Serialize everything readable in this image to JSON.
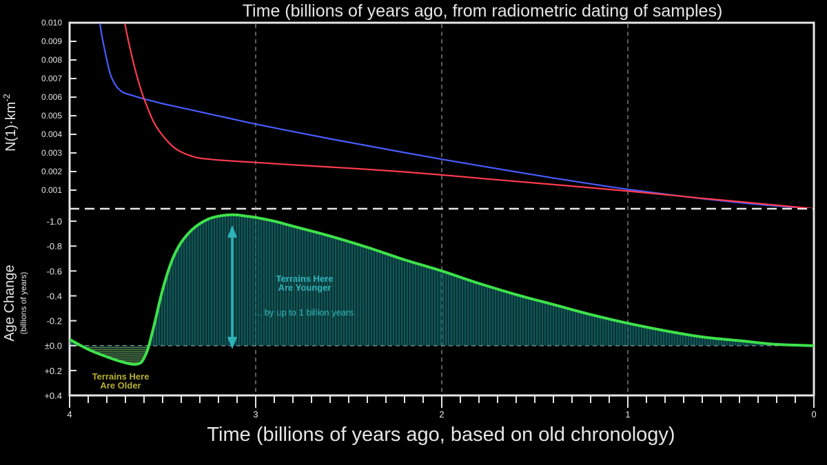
{
  "top_title": "Time (billions of years ago, from radiometric dating of samples)",
  "bottom_title": "Time (billions of years ago, based on old chronology)",
  "top_ylabel_main": "N(1)·km",
  "top_ylabel_sup": "-2",
  "bottom_ylabel_main": "Age Change",
  "bottom_ylabel_sub": "(billions of years)",
  "annotation_younger_1": "Terrains Here",
  "annotation_younger_2": "Are Younger",
  "annotation_note": "... by up to 1 billion years.",
  "annotation_older_1": "Terrains Here",
  "annotation_older_2": "Are Older",
  "colors": {
    "background": "#000000",
    "frame": "#e6e6e6",
    "blue": "#4a5cff",
    "red": "#ff3b4e",
    "green": "#3ee24a",
    "teal": "#2fb3b8",
    "olive": "#b7b12f",
    "fill_teal": "#0e5c5c",
    "fill_olive": "#5a5a10"
  },
  "chart_data": [
    {
      "type": "line",
      "title": "Time (billions of years ago, from radiometric dating of samples)",
      "ylabel": "N(1)·km-2",
      "xlim": [
        4,
        0
      ],
      "ylim": [
        0,
        0.01
      ],
      "yticks": [
        "0.010",
        "0.009",
        "0.008",
        "0.007",
        "0.006",
        "0.005",
        "0.004",
        "0.003",
        "0.002",
        "0.001"
      ],
      "ytick_values": [
        0.01,
        0.009,
        0.008,
        0.007,
        0.006,
        0.005,
        0.004,
        0.003,
        0.002,
        0.001
      ],
      "series": [
        {
          "color": "#4a5cff",
          "x": [
            3.85,
            3.83,
            3.8,
            3.78,
            3.75,
            3.72,
            3.7,
            3.65,
            3.6,
            3.55,
            3.5,
            3.4,
            3.3,
            3.2,
            3.1,
            3.0,
            2.8,
            2.6,
            2.4,
            2.2,
            2.0,
            1.8,
            1.6,
            1.4,
            1.2,
            1.0,
            0.8,
            0.6,
            0.4,
            0.2,
            0.0
          ],
          "y": [
            0.011,
            0.0095,
            0.008,
            0.0072,
            0.0066,
            0.0063,
            0.0062,
            0.00605,
            0.0059,
            0.00578,
            0.00565,
            0.00543,
            0.00521,
            0.00499,
            0.00477,
            0.00455,
            0.00415,
            0.00376,
            0.00339,
            0.00302,
            0.00266,
            0.00232,
            0.00198,
            0.00165,
            0.00134,
            0.00104,
            0.00078,
            0.00054,
            0.00033,
            0.00015,
            0.0
          ]
        },
        {
          "color": "#ff3b4e",
          "x": [
            3.72,
            3.7,
            3.67,
            3.64,
            3.61,
            3.58,
            3.55,
            3.52,
            3.48,
            3.44,
            3.4,
            3.35,
            3.3,
            3.2,
            3.1,
            3.0,
            2.8,
            2.6,
            2.4,
            2.2,
            2.0,
            1.8,
            1.6,
            1.4,
            1.2,
            1.0,
            0.8,
            0.6,
            0.4,
            0.2,
            0.0
          ],
          "y": [
            0.011,
            0.0098,
            0.0084,
            0.0072,
            0.0062,
            0.0054,
            0.0047,
            0.0042,
            0.0037,
            0.0033,
            0.00305,
            0.00285,
            0.00272,
            0.00262,
            0.00255,
            0.00249,
            0.00236,
            0.00224,
            0.00212,
            0.00198,
            0.00182,
            0.00164,
            0.00147,
            0.0013,
            0.00113,
            0.00095,
            0.00076,
            0.00056,
            0.00038,
            0.00019,
            0.0
          ]
        }
      ],
      "grid": "vertical dashed at x = 3, 2, 1"
    },
    {
      "type": "area",
      "ylabel": "Age Change (billions of years)",
      "xlabel": "Time (billions of years ago, based on old chronology)",
      "xlim": [
        4,
        0
      ],
      "ylim": [
        0.4,
        -1.1
      ],
      "yticks": [
        "-1.0",
        "-0.8",
        "-0.6",
        "-0.4",
        "-0.2",
        "±0.0",
        "+0.2",
        "+0.4"
      ],
      "ytick_values": [
        -1.0,
        -0.8,
        -0.6,
        -0.4,
        -0.2,
        0.0,
        0.2,
        0.4
      ],
      "xticks": [
        "4",
        "3",
        "2",
        "1",
        "0"
      ],
      "xtick_values": [
        4,
        3,
        2,
        1,
        0
      ],
      "series": [
        {
          "color": "#3ee24a",
          "x": [
            4.0,
            3.9,
            3.8,
            3.72,
            3.66,
            3.62,
            3.6,
            3.58,
            3.56,
            3.54,
            3.52,
            3.5,
            3.47,
            3.44,
            3.4,
            3.35,
            3.3,
            3.25,
            3.2,
            3.15,
            3.1,
            3.05,
            3.0,
            2.9,
            2.8,
            2.6,
            2.4,
            2.2,
            2.0,
            1.8,
            1.6,
            1.4,
            1.2,
            1.0,
            0.8,
            0.6,
            0.4,
            0.2,
            0.0
          ],
          "y": [
            -0.05,
            0.03,
            0.09,
            0.13,
            0.15,
            0.14,
            0.1,
            0.03,
            -0.08,
            -0.2,
            -0.33,
            -0.45,
            -0.6,
            -0.72,
            -0.83,
            -0.92,
            -0.98,
            -1.02,
            -1.04,
            -1.05,
            -1.05,
            -1.04,
            -1.03,
            -1.0,
            -0.96,
            -0.88,
            -0.79,
            -0.69,
            -0.6,
            -0.5,
            -0.41,
            -0.33,
            -0.25,
            -0.18,
            -0.12,
            -0.07,
            -0.04,
            -0.01,
            0.0
          ]
        }
      ],
      "grid": "vertical dashed at x = 3, 2, 1; horizontal dashed at y = 0"
    }
  ]
}
